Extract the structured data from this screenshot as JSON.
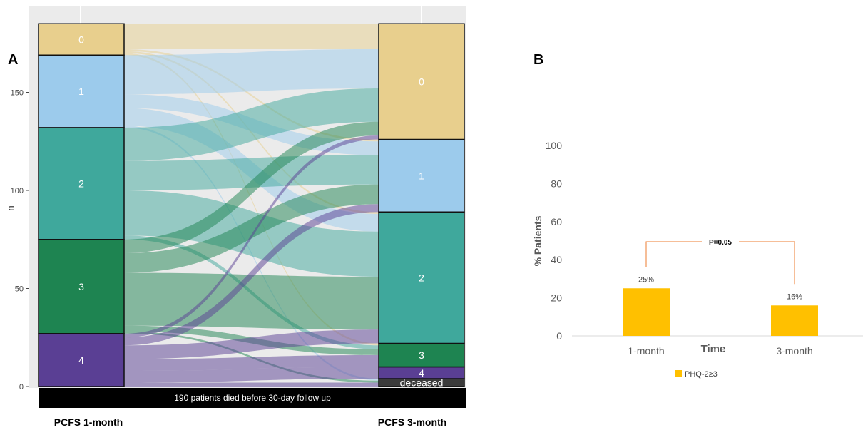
{
  "chart_data": [
    {
      "type": "alluvial",
      "panel": "A",
      "ylabel": "n",
      "yticks": [
        0,
        50,
        100,
        150
      ],
      "ylim": [
        0,
        186
      ],
      "axes": [
        "PCFS 1-month",
        "PCFS 3-month"
      ],
      "note": "190 patients died before 30-day follow up",
      "strata_1month": [
        {
          "label": "0",
          "value": 16,
          "color": "#e8cf8d"
        },
        {
          "label": "1",
          "value": 37,
          "color": "#9ccbec"
        },
        {
          "label": "2",
          "value": 57,
          "color": "#3fa89c"
        },
        {
          "label": "3",
          "value": 48,
          "color": "#1e8451"
        },
        {
          "label": "4",
          "value": 27,
          "color": "#5a3f94"
        }
      ],
      "strata_3month": [
        {
          "label": "deceased",
          "value": 4,
          "color": "#3b3b3b"
        },
        {
          "label": "4",
          "value": 6,
          "color": "#5a3f94"
        },
        {
          "label": "3",
          "value": 12,
          "color": "#1e8451"
        },
        {
          "label": "2",
          "value": 67,
          "color": "#3fa89c"
        },
        {
          "label": "1",
          "value": 37,
          "color": "#9ccbec"
        },
        {
          "label": "0",
          "value": 59,
          "color": "#e8cf8d"
        }
      ],
      "flows": [
        {
          "from": "0",
          "to": "0",
          "value": 13
        },
        {
          "from": "0",
          "to": "1",
          "value": 1
        },
        {
          "from": "0",
          "to": "2",
          "value": 1
        },
        {
          "from": "0",
          "to": "3",
          "value": 1
        },
        {
          "from": "1",
          "to": "0",
          "value": 20
        },
        {
          "from": "1",
          "to": "1",
          "value": 7
        },
        {
          "from": "1",
          "to": "2",
          "value": 9
        },
        {
          "from": "1",
          "to": "deceased",
          "value": 1
        },
        {
          "from": "2",
          "to": "0",
          "value": 17
        },
        {
          "from": "2",
          "to": "1",
          "value": 15
        },
        {
          "from": "2",
          "to": "2",
          "value": 23
        },
        {
          "from": "2",
          "to": "3",
          "value": 2
        },
        {
          "from": "3",
          "to": "0",
          "value": 7
        },
        {
          "from": "3",
          "to": "1",
          "value": 10
        },
        {
          "from": "3",
          "to": "2",
          "value": 27
        },
        {
          "from": "3",
          "to": "3",
          "value": 3
        },
        {
          "from": "3",
          "to": "deceased",
          "value": 1
        },
        {
          "from": "4",
          "to": "0",
          "value": 2
        },
        {
          "from": "4",
          "to": "1",
          "value": 4
        },
        {
          "from": "4",
          "to": "2",
          "value": 7
        },
        {
          "from": "4",
          "to": "3",
          "value": 6
        },
        {
          "from": "4",
          "to": "4",
          "value": 6
        },
        {
          "from": "4",
          "to": "deceased",
          "value": 2
        }
      ]
    },
    {
      "type": "bar",
      "panel": "B",
      "categories": [
        "1-month",
        "3-month"
      ],
      "series": [
        {
          "name": "PHQ-2≥3",
          "values": [
            25,
            16
          ],
          "color": "#ffc000"
        }
      ],
      "data_labels": [
        "25%",
        "16%"
      ],
      "xlabel": "Time",
      "ylabel": "% Patients",
      "ylim": [
        0,
        100
      ],
      "yticks": [
        0,
        20,
        40,
        60,
        80,
        100
      ],
      "annotation": "P=0.05",
      "annotation_color": "#ed7d31",
      "legend_position": "bottom"
    }
  ]
}
